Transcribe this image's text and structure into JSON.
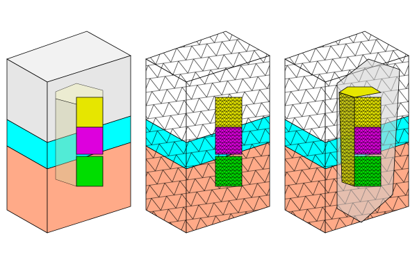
{
  "figure": {
    "panels": [
      {
        "name": "geometry",
        "meshed": false
      },
      {
        "name": "mesh",
        "meshed": true
      },
      {
        "name": "mesh-cut",
        "meshed": true,
        "cut": true
      }
    ],
    "colors": {
      "top_domain": "#e6e6e6",
      "middle_layer": "#00ffff",
      "bottom_domain": "#ffaa88",
      "inner_top": "#e6e600",
      "inner_middle": "#dd00dd",
      "inner_bottom": "#00dd00",
      "edge": "#000000"
    }
  }
}
